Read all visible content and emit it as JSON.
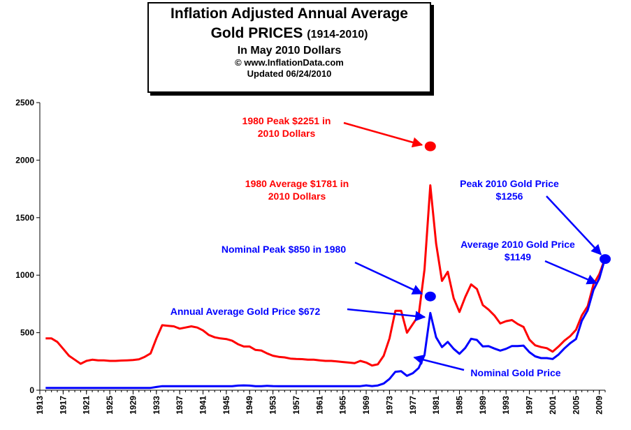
{
  "title_box": {
    "line1": "Inflation Adjusted Annual Average",
    "line2_main": "Gold PRICES",
    "line2_range": "(1914-2010)",
    "line3": "In May 2010 Dollars",
    "line4": "© www.InflationData.com",
    "line5": "Updated 06/24/2010"
  },
  "colors": {
    "adjusted": "#ff0000",
    "nominal": "#0000ff",
    "axis": "#000000"
  },
  "chart_data": {
    "type": "line",
    "ylim": [
      0,
      2500
    ],
    "yticks": [
      0,
      500,
      1000,
      1500,
      2000,
      2500
    ],
    "xlim": [
      1913,
      2010
    ],
    "xticks": [
      1913,
      1917,
      1921,
      1925,
      1929,
      1933,
      1937,
      1941,
      1945,
      1949,
      1953,
      1957,
      1961,
      1965,
      1969,
      1973,
      1977,
      1981,
      1985,
      1989,
      1993,
      1997,
      2001,
      2005,
      2009
    ],
    "series": [
      {
        "name": "Inflation Adjusted",
        "color": "#ff0000",
        "points": [
          [
            1914,
            450
          ],
          [
            1915,
            450
          ],
          [
            1916,
            420
          ],
          [
            1917,
            360
          ],
          [
            1918,
            300
          ],
          [
            1919,
            265
          ],
          [
            1920,
            230
          ],
          [
            1921,
            255
          ],
          [
            1922,
            265
          ],
          [
            1923,
            260
          ],
          [
            1924,
            260
          ],
          [
            1925,
            255
          ],
          [
            1926,
            255
          ],
          [
            1927,
            258
          ],
          [
            1928,
            260
          ],
          [
            1929,
            262
          ],
          [
            1930,
            268
          ],
          [
            1931,
            290
          ],
          [
            1932,
            320
          ],
          [
            1933,
            450
          ],
          [
            1934,
            565
          ],
          [
            1935,
            560
          ],
          [
            1936,
            555
          ],
          [
            1937,
            535
          ],
          [
            1938,
            545
          ],
          [
            1939,
            555
          ],
          [
            1940,
            545
          ],
          [
            1941,
            520
          ],
          [
            1942,
            480
          ],
          [
            1943,
            460
          ],
          [
            1944,
            450
          ],
          [
            1945,
            445
          ],
          [
            1946,
            430
          ],
          [
            1947,
            400
          ],
          [
            1948,
            380
          ],
          [
            1949,
            380
          ],
          [
            1950,
            350
          ],
          [
            1951,
            345
          ],
          [
            1952,
            320
          ],
          [
            1953,
            300
          ],
          [
            1954,
            290
          ],
          [
            1955,
            285
          ],
          [
            1956,
            275
          ],
          [
            1957,
            272
          ],
          [
            1958,
            270
          ],
          [
            1959,
            265
          ],
          [
            1960,
            265
          ],
          [
            1961,
            260
          ],
          [
            1962,
            255
          ],
          [
            1963,
            255
          ],
          [
            1964,
            250
          ],
          [
            1965,
            245
          ],
          [
            1966,
            240
          ],
          [
            1967,
            235
          ],
          [
            1968,
            255
          ],
          [
            1969,
            240
          ],
          [
            1970,
            215
          ],
          [
            1971,
            225
          ],
          [
            1972,
            300
          ],
          [
            1973,
            450
          ],
          [
            1974,
            690
          ],
          [
            1975,
            690
          ],
          [
            1976,
            500
          ],
          [
            1977,
            575
          ],
          [
            1978,
            650
          ],
          [
            1979,
            1050
          ],
          [
            1980,
            1781
          ],
          [
            1981,
            1275
          ],
          [
            1982,
            950
          ],
          [
            1983,
            1030
          ],
          [
            1984,
            800
          ],
          [
            1985,
            680
          ],
          [
            1986,
            810
          ],
          [
            1987,
            920
          ],
          [
            1988,
            880
          ],
          [
            1989,
            740
          ],
          [
            1990,
            700
          ],
          [
            1991,
            650
          ],
          [
            1992,
            580
          ],
          [
            1993,
            600
          ],
          [
            1994,
            610
          ],
          [
            1995,
            575
          ],
          [
            1996,
            550
          ],
          [
            1997,
            440
          ],
          [
            1998,
            390
          ],
          [
            1999,
            375
          ],
          [
            2000,
            365
          ],
          [
            2001,
            335
          ],
          [
            2002,
            380
          ],
          [
            2003,
            430
          ],
          [
            2004,
            470
          ],
          [
            2005,
            525
          ],
          [
            2006,
            650
          ],
          [
            2007,
            730
          ],
          [
            2008,
            920
          ],
          [
            2009,
            1010
          ],
          [
            2010,
            1149
          ]
        ]
      },
      {
        "name": "Nominal Gold Price",
        "color": "#0000ff",
        "points": [
          [
            1914,
            20
          ],
          [
            1915,
            20
          ],
          [
            1920,
            20
          ],
          [
            1925,
            20
          ],
          [
            1930,
            20
          ],
          [
            1932,
            20
          ],
          [
            1933,
            28
          ],
          [
            1934,
            35
          ],
          [
            1935,
            35
          ],
          [
            1940,
            35
          ],
          [
            1945,
            35
          ],
          [
            1946,
            35
          ],
          [
            1947,
            40
          ],
          [
            1948,
            42
          ],
          [
            1949,
            40
          ],
          [
            1950,
            35
          ],
          [
            1951,
            35
          ],
          [
            1952,
            38
          ],
          [
            1953,
            36
          ],
          [
            1954,
            35
          ],
          [
            1960,
            35
          ],
          [
            1965,
            35
          ],
          [
            1968,
            35
          ],
          [
            1969,
            42
          ],
          [
            1970,
            36
          ],
          [
            1971,
            41
          ],
          [
            1972,
            58
          ],
          [
            1973,
            98
          ],
          [
            1974,
            160
          ],
          [
            1975,
            165
          ],
          [
            1976,
            125
          ],
          [
            1977,
            148
          ],
          [
            1978,
            193
          ],
          [
            1979,
            306
          ],
          [
            1980,
            672
          ],
          [
            1981,
            460
          ],
          [
            1982,
            375
          ],
          [
            1983,
            420
          ],
          [
            1984,
            360
          ],
          [
            1985,
            317
          ],
          [
            1986,
            368
          ],
          [
            1987,
            447
          ],
          [
            1988,
            437
          ],
          [
            1989,
            381
          ],
          [
            1990,
            383
          ],
          [
            1991,
            362
          ],
          [
            1992,
            344
          ],
          [
            1993,
            360
          ],
          [
            1994,
            384
          ],
          [
            1995,
            384
          ],
          [
            1996,
            388
          ],
          [
            1997,
            331
          ],
          [
            1998,
            294
          ],
          [
            1999,
            279
          ],
          [
            2000,
            279
          ],
          [
            2001,
            271
          ],
          [
            2002,
            310
          ],
          [
            2003,
            363
          ],
          [
            2004,
            409
          ],
          [
            2005,
            445
          ],
          [
            2006,
            604
          ],
          [
            2007,
            695
          ],
          [
            2008,
            872
          ],
          [
            2009,
            972
          ],
          [
            2010,
            1149
          ]
        ]
      }
    ],
    "markers": [
      {
        "x": 1980,
        "y": 2120,
        "color": "#ff0000"
      },
      {
        "x": 1980,
        "y": 815,
        "color": "#0000ff"
      },
      {
        "x": 2010,
        "y": 1140,
        "color": "#0000ff"
      }
    ],
    "annotations": [
      {
        "key": "peak_adj",
        "lines": [
          "1980 Peak $2251 in",
          "2010 Dollars"
        ],
        "color": "#ff0000"
      },
      {
        "key": "avg_adj",
        "lines": [
          "1980 Average $1781 in",
          "2010 Dollars"
        ],
        "color": "#ff0000"
      },
      {
        "key": "peak_2010",
        "lines": [
          "Peak 2010 Gold Price",
          "$1256"
        ],
        "color": "#0000ff"
      },
      {
        "key": "avg_2010",
        "lines": [
          "Average 2010 Gold Price",
          "$1149"
        ],
        "color": "#0000ff"
      },
      {
        "key": "nom_peak",
        "lines": [
          "Nominal Peak $850 in 1980"
        ],
        "color": "#0000ff"
      },
      {
        "key": "annual_avg",
        "lines": [
          "Annual Average Gold Price $672"
        ],
        "color": "#0000ff"
      },
      {
        "key": "nominal",
        "lines": [
          "Nominal Gold Price"
        ],
        "color": "#0000ff"
      }
    ]
  }
}
